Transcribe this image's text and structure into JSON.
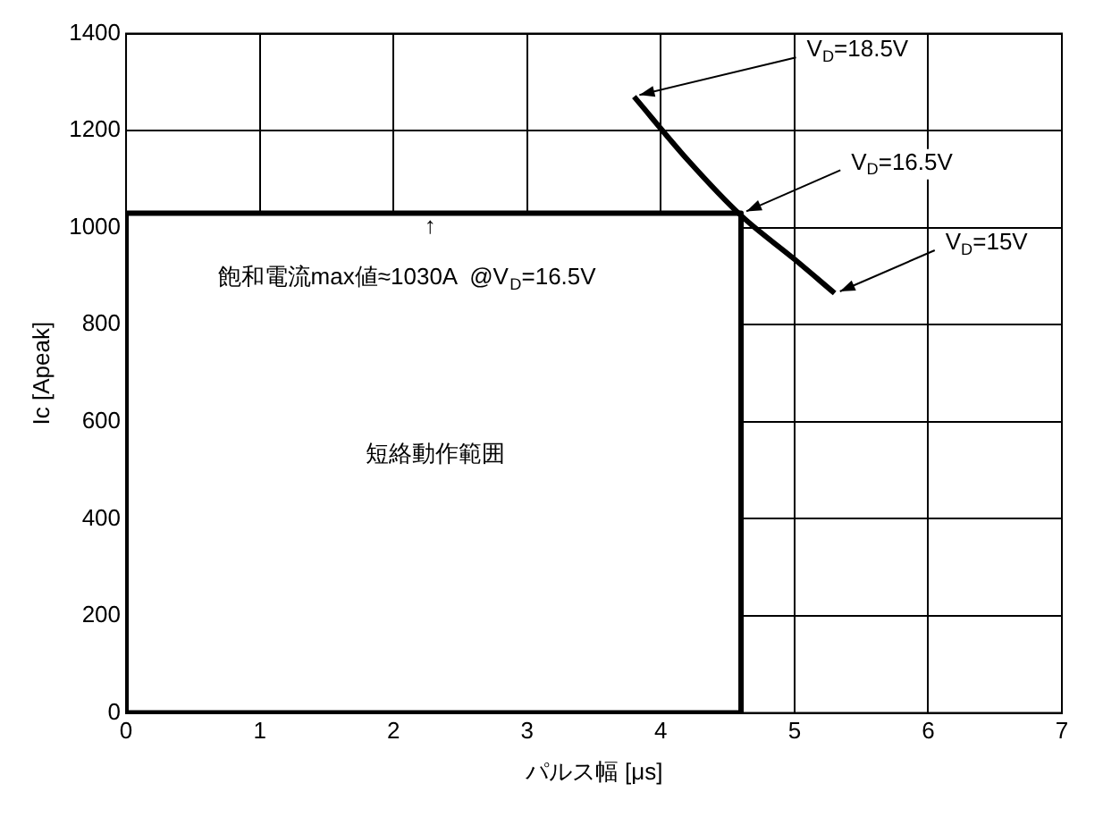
{
  "chart_data": {
    "type": "line",
    "xlabel": "パルス幅 [μs]",
    "ylabel": "Ic [Apeak]",
    "xlim": [
      0,
      7
    ],
    "xticks": [
      0,
      1,
      2,
      3,
      4,
      5,
      6,
      7
    ],
    "ylim": [
      0,
      1400
    ],
    "yticks": [
      0,
      200,
      400,
      600,
      800,
      1000,
      1200,
      1400
    ],
    "grid": true,
    "marker": "none",
    "line_style": "solid",
    "series": [
      {
        "type": "area",
        "color": "#000000",
        "x": [
          0,
          0,
          4.6,
          4.6,
          0
        ],
        "values": [
          0,
          1030,
          1030,
          0,
          0
        ]
      },
      {
        "color": "#000000",
        "x": [
          3.8,
          4.2,
          4.6,
          5.0,
          5.3
        ],
        "values": [
          1270,
          1140,
          1025,
          935,
          865
        ]
      }
    ],
    "annotations": [
      {
        "text": "V$_{D}$=18.5V",
        "x": 3.8,
        "y": 1270
      },
      {
        "text": "V$_{D}$=16.5V",
        "x": 4.6,
        "y": 1030
      },
      {
        "text": "V$_{D}$=15V",
        "x": 5.3,
        "y": 865
      },
      "↑",
      "飽和電流max値≈1030A  @V$_{D}$=16.5V",
      "短絡動作範囲"
    ]
  }
}
